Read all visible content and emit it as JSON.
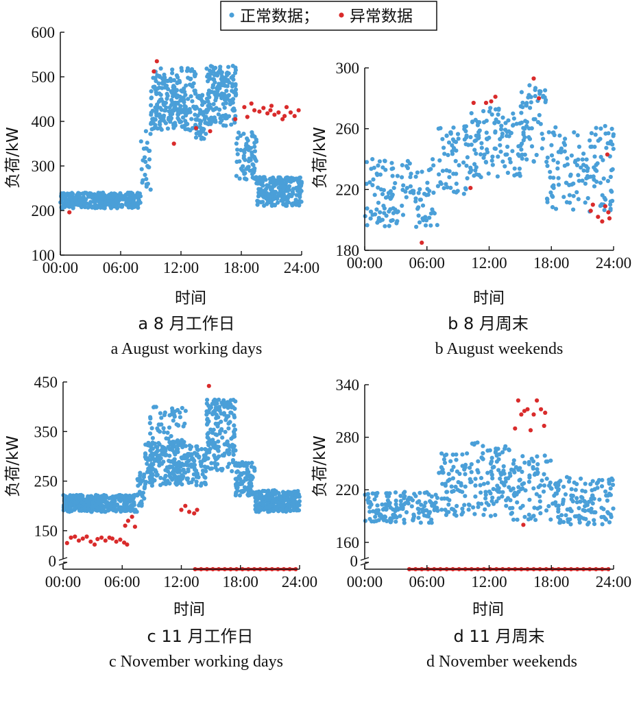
{
  "legend": {
    "normal": "正常数据；",
    "abnormal": "异常数据"
  },
  "colors": {
    "normal": "#4a9fd8",
    "abnormal": "#d92b2b",
    "axis": "#111111"
  },
  "chart_data": [
    {
      "id": "a",
      "type": "scatter",
      "caption_cn": "a 8 月工作日",
      "caption_en": "a  August working days",
      "xlabel": "时间",
      "ylabel": "负荷/kW",
      "xlim": [
        0,
        24
      ],
      "ylim": [
        100,
        600
      ],
      "xticks": [
        0,
        6,
        12,
        18,
        24
      ],
      "xticklabels": [
        "00:00",
        "06:00",
        "12:00",
        "18:00",
        "24:00"
      ],
      "yticks": [
        100,
        200,
        300,
        400,
        500,
        600
      ],
      "yticklabels": [
        "100",
        "200",
        "300",
        "400",
        "500",
        "600"
      ],
      "axis_break": false,
      "series": [
        {
          "name": "正常数据",
          "style": "normal",
          "bands": [
            {
              "x0": 0,
              "x1": 8.0,
              "yl": 205,
              "yh": 240,
              "n": 340
            },
            {
              "x0": 8.0,
              "x1": 9.0,
              "yl": 240,
              "yh": 380,
              "n": 25
            },
            {
              "x0": 9.0,
              "x1": 13.5,
              "yl": 380,
              "yh": 520,
              "n": 240
            },
            {
              "x0": 13.5,
              "x1": 14.5,
              "yl": 360,
              "yh": 460,
              "n": 50
            },
            {
              "x0": 14.5,
              "x1": 17.5,
              "yl": 390,
              "yh": 525,
              "n": 170
            },
            {
              "x0": 17.5,
              "x1": 19.5,
              "yl": 270,
              "yh": 380,
              "n": 70
            },
            {
              "x0": 19.5,
              "x1": 24,
              "yl": 210,
              "yh": 275,
              "n": 220
            }
          ]
        },
        {
          "name": "异常数据",
          "style": "abnormal",
          "points": [
            [
              0.9,
              196
            ],
            [
              9.6,
              535
            ],
            [
              9.3,
              512
            ],
            [
              11.3,
              350
            ],
            [
              13.5,
              385
            ],
            [
              14.9,
              378
            ],
            [
              17.4,
              405
            ],
            [
              18.3,
              432
            ],
            [
              18.6,
              410
            ],
            [
              19.0,
              440
            ],
            [
              19.3,
              425
            ],
            [
              19.8,
              422
            ],
            [
              20.2,
              430
            ],
            [
              20.6,
              418
            ],
            [
              21.0,
              435
            ],
            [
              21.3,
              415
            ],
            [
              21.7,
              420
            ],
            [
              22.1,
              405
            ],
            [
              22.5,
              432
            ],
            [
              22.9,
              420
            ],
            [
              23.3,
              412
            ],
            [
              23.7,
              425
            ],
            [
              20.9,
              425
            ],
            [
              22.3,
              412
            ]
          ]
        }
      ]
    },
    {
      "id": "b",
      "type": "scatter",
      "caption_cn": "b  8 月周末",
      "caption_en": "b  August weekends",
      "xlabel": "时间",
      "ylabel": "负荷/kW",
      "xlim": [
        0,
        24
      ],
      "ylim": [
        180,
        300
      ],
      "xticks": [
        0,
        6,
        12,
        18,
        24
      ],
      "xticklabels": [
        "00:00",
        "06:00",
        "12:00",
        "18:00",
        "24:00"
      ],
      "yticks": [
        180,
        220,
        260,
        300
      ],
      "yticklabels": [
        "180",
        "220",
        "260",
        "300"
      ],
      "axis_break": false,
      "series": [
        {
          "name": "正常数据",
          "style": "normal",
          "bands": [
            {
              "x0": 0,
              "x1": 7,
              "yl": 195,
              "yh": 240,
              "n": 130
            },
            {
              "x0": 7,
              "x1": 10,
              "yl": 215,
              "yh": 262,
              "n": 60
            },
            {
              "x0": 10,
              "x1": 15,
              "yl": 228,
              "yh": 275,
              "n": 110
            },
            {
              "x0": 15,
              "x1": 17.5,
              "yl": 238,
              "yh": 290,
              "n": 60
            },
            {
              "x0": 17.5,
              "x1": 24,
              "yl": 205,
              "yh": 262,
              "n": 140
            }
          ]
        },
        {
          "name": "异常数据",
          "style": "abnormal",
          "points": [
            [
              5.5,
              185
            ],
            [
              10.2,
              221
            ],
            [
              10.5,
              277
            ],
            [
              11.7,
              277
            ],
            [
              12.2,
              278
            ],
            [
              12.6,
              281
            ],
            [
              16.3,
              293
            ],
            [
              16.8,
              280
            ],
            [
              21.8,
              206
            ],
            [
              22.0,
              210
            ],
            [
              22.5,
              202
            ],
            [
              22.9,
              199
            ],
            [
              23.2,
              209
            ],
            [
              23.5,
              205
            ],
            [
              23.6,
              201
            ],
            [
              23.4,
              243
            ]
          ]
        }
      ]
    },
    {
      "id": "c",
      "type": "scatter",
      "caption_cn": "c  11 月工作日",
      "caption_en": "c  November working days",
      "xlabel": "时间",
      "ylabel": "负荷/kW",
      "xlim": [
        0,
        24
      ],
      "ylim": [
        100,
        450
      ],
      "xticks": [
        0,
        6,
        12,
        18,
        24
      ],
      "xticklabels": [
        "00:00",
        "06:00",
        "12:00",
        "18:00",
        "24:00"
      ],
      "yticks": [
        150,
        250,
        350,
        450
      ],
      "yticklabels": [
        "150",
        "250",
        "350",
        "450"
      ],
      "axis_break": true,
      "zero_label": "0",
      "series": [
        {
          "name": "正常数据",
          "style": "normal",
          "bands": [
            {
              "x0": 0,
              "x1": 7.5,
              "yl": 188,
              "yh": 222,
              "n": 380
            },
            {
              "x0": 7.5,
              "x1": 8.3,
              "yl": 200,
              "yh": 270,
              "n": 30
            },
            {
              "x0": 8.3,
              "x1": 13,
              "yl": 240,
              "yh": 330,
              "n": 220
            },
            {
              "x0": 8.8,
              "x1": 12.5,
              "yl": 320,
              "yh": 400,
              "n": 50
            },
            {
              "x0": 13,
              "x1": 14.5,
              "yl": 240,
              "yh": 320,
              "n": 60
            },
            {
              "x0": 14.5,
              "x1": 17.5,
              "yl": 270,
              "yh": 415,
              "n": 170
            },
            {
              "x0": 17.5,
              "x1": 19.5,
              "yl": 220,
              "yh": 290,
              "n": 90
            },
            {
              "x0": 19.5,
              "x1": 24,
              "yl": 188,
              "yh": 232,
              "n": 260
            }
          ]
        },
        {
          "name": "异常数据",
          "style": "abnormal",
          "points": [
            [
              0.4,
              125
            ],
            [
              0.8,
              136
            ],
            [
              1.2,
              138
            ],
            [
              1.6,
              130
            ],
            [
              2.0,
              134
            ],
            [
              2.4,
              138
            ],
            [
              2.8,
              128
            ],
            [
              3.2,
              122
            ],
            [
              3.5,
              133
            ],
            [
              3.9,
              136
            ],
            [
              4.3,
              130
            ],
            [
              4.7,
              136
            ],
            [
              5.0,
              134
            ],
            [
              5.4,
              128
            ],
            [
              5.8,
              132
            ],
            [
              6.2,
              126
            ],
            [
              6.5,
              122
            ],
            [
              6.3,
              160
            ],
            [
              6.6,
              170
            ],
            [
              7.0,
              178
            ],
            [
              7.3,
              158
            ],
            [
              12.0,
              192
            ],
            [
              12.4,
              200
            ],
            [
              12.8,
              188
            ],
            [
              13.3,
              185
            ],
            [
              13.6,
              192
            ],
            [
              14.8,
              442
            ]
          ]
        },
        {
          "name": "异常数据",
          "style": "abnormal",
          "zero_line": true,
          "points": [
            [
              13.4,
              0
            ],
            [
              14,
              0
            ],
            [
              14.6,
              0
            ],
            [
              15.2,
              0
            ],
            [
              15.8,
              0
            ],
            [
              16.4,
              0
            ],
            [
              17,
              0
            ],
            [
              17.6,
              0
            ],
            [
              18.2,
              0
            ],
            [
              18.8,
              0
            ],
            [
              19.4,
              0
            ],
            [
              20,
              0
            ],
            [
              20.6,
              0
            ],
            [
              21.2,
              0
            ],
            [
              21.8,
              0
            ],
            [
              22.4,
              0
            ],
            [
              23,
              0
            ],
            [
              23.6,
              0
            ]
          ]
        }
      ]
    },
    {
      "id": "d",
      "type": "scatter",
      "caption_cn": "d  11 月周末",
      "caption_en": "d   November weekends",
      "xlabel": "时间",
      "ylabel": "负荷/kW",
      "xlim": [
        0,
        24
      ],
      "ylim": [
        145,
        340
      ],
      "xticks": [
        0,
        6,
        12,
        18,
        24
      ],
      "xticklabels": [
        "00:00",
        "06:00",
        "12:00",
        "18:00",
        "24:00"
      ],
      "yticks": [
        160,
        220,
        280,
        340
      ],
      "yticklabels": [
        "160",
        "220",
        "280",
        "340"
      ],
      "axis_break": true,
      "zero_label": "0",
      "series": [
        {
          "name": "正常数据",
          "style": "normal",
          "bands": [
            {
              "x0": 0,
              "x1": 7,
              "yl": 182,
              "yh": 218,
              "n": 150
            },
            {
              "x0": 7,
              "x1": 10,
              "yl": 190,
              "yh": 262,
              "n": 70
            },
            {
              "x0": 10,
              "x1": 14,
              "yl": 190,
              "yh": 275,
              "n": 100
            },
            {
              "x0": 14,
              "x1": 18,
              "yl": 185,
              "yh": 260,
              "n": 90
            },
            {
              "x0": 18,
              "x1": 24,
              "yl": 180,
              "yh": 235,
              "n": 130
            }
          ]
        },
        {
          "name": "异常数据",
          "style": "abnormal",
          "points": [
            [
              14.8,
              322
            ],
            [
              15.1,
              306
            ],
            [
              15.4,
              310
            ],
            [
              15.7,
              312
            ],
            [
              16.0,
              288
            ],
            [
              16.3,
              306
            ],
            [
              16.6,
              322
            ],
            [
              17.0,
              312
            ],
            [
              17.4,
              308
            ],
            [
              14.5,
              290
            ],
            [
              17.3,
              293
            ],
            [
              15.3,
              180
            ]
          ]
        },
        {
          "name": "异常数据",
          "style": "abnormal",
          "zero_line": true,
          "points": [
            [
              4.3,
              0
            ],
            [
              4.9,
              0
            ],
            [
              5.5,
              0
            ],
            [
              6.1,
              0
            ],
            [
              6.7,
              0
            ],
            [
              7.3,
              0
            ],
            [
              7.9,
              0
            ],
            [
              8.5,
              0
            ],
            [
              9.1,
              0
            ],
            [
              9.7,
              0
            ],
            [
              10.3,
              0
            ],
            [
              10.9,
              0
            ],
            [
              11.5,
              0
            ],
            [
              12.1,
              0
            ],
            [
              12.7,
              0
            ],
            [
              13.3,
              0
            ],
            [
              13.9,
              0
            ],
            [
              14.5,
              0
            ],
            [
              15.1,
              0
            ],
            [
              15.7,
              0
            ],
            [
              16.3,
              0
            ],
            [
              16.9,
              0
            ],
            [
              17.5,
              0
            ],
            [
              18.1,
              0
            ],
            [
              18.7,
              0
            ],
            [
              19.3,
              0
            ],
            [
              19.9,
              0
            ],
            [
              20.5,
              0
            ],
            [
              21.1,
              0
            ],
            [
              21.7,
              0
            ],
            [
              22.3,
              0
            ],
            [
              22.9,
              0
            ],
            [
              23.5,
              0
            ]
          ]
        }
      ]
    }
  ]
}
